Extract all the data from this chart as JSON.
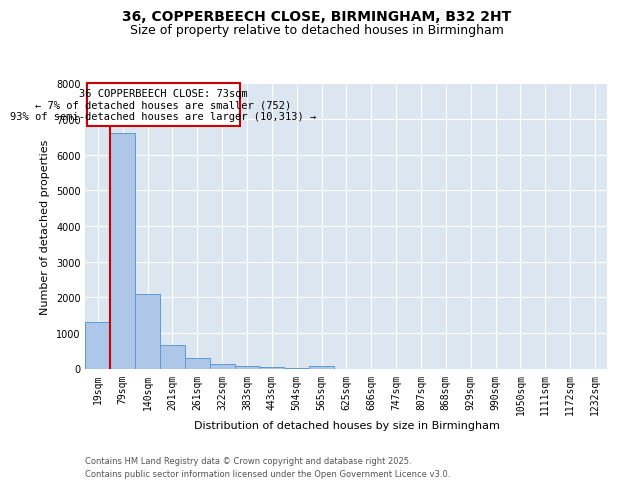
{
  "title": "36, COPPERBEECH CLOSE, BIRMINGHAM, B32 2HT",
  "subtitle": "Size of property relative to detached houses in Birmingham",
  "xlabel": "Distribution of detached houses by size in Birmingham",
  "ylabel": "Number of detached properties",
  "categories": [
    "19sqm",
    "79sqm",
    "140sqm",
    "201sqm",
    "261sqm",
    "322sqm",
    "383sqm",
    "443sqm",
    "504sqm",
    "565sqm",
    "625sqm",
    "686sqm",
    "747sqm",
    "807sqm",
    "868sqm",
    "929sqm",
    "990sqm",
    "1050sqm",
    "1111sqm",
    "1172sqm",
    "1232sqm"
  ],
  "values": [
    1300,
    6600,
    2100,
    650,
    290,
    120,
    75,
    35,
    15,
    60,
    0,
    0,
    0,
    0,
    0,
    0,
    0,
    0,
    0,
    0,
    0
  ],
  "bar_color": "#aec6e8",
  "bar_edge_color": "#5b9bd5",
  "annotation_border_color": "#cc0000",
  "vertical_line_color": "#cc0000",
  "annotation_text_line1": "36 COPPERBEECH CLOSE: 73sqm",
  "annotation_text_line2": "← 7% of detached houses are smaller (752)",
  "annotation_text_line3": "93% of semi-detached houses are larger (10,313) →",
  "footer_line1": "Contains HM Land Registry data © Crown copyright and database right 2025.",
  "footer_line2": "Contains public sector information licensed under the Open Government Licence v3.0.",
  "ylim": [
    0,
    8000
  ],
  "yticks": [
    0,
    1000,
    2000,
    3000,
    4000,
    5000,
    6000,
    7000,
    8000
  ],
  "plot_bg_color": "#dce6f1",
  "fig_bg_color": "#ffffff",
  "title_fontsize": 10,
  "subtitle_fontsize": 9,
  "tick_fontsize": 7,
  "axis_label_fontsize": 8,
  "annotation_fontsize": 7.5,
  "footer_fontsize": 6
}
